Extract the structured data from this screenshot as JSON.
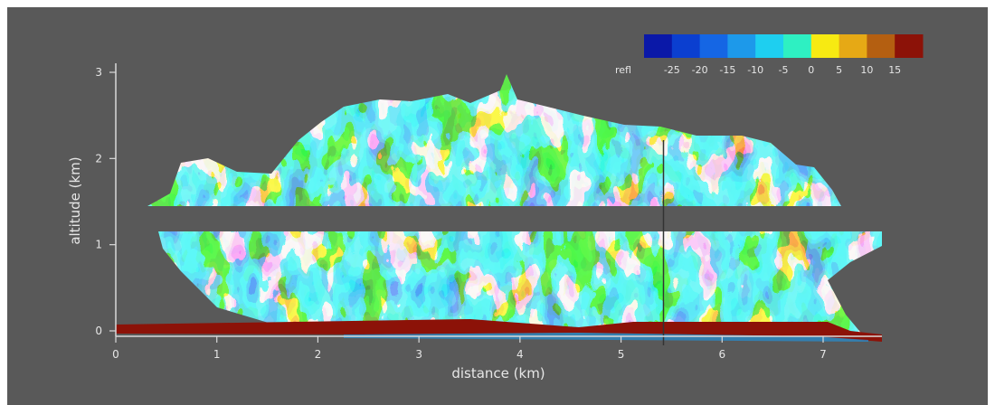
{
  "chart_data": {
    "type": "heatmap",
    "xlabel": "distance (km)",
    "ylabel": "altitude (km)",
    "xlim": [
      0,
      7.6
    ],
    "ylim": [
      -0.1,
      3.1
    ],
    "xticks": [
      "0",
      "1",
      "2",
      "3",
      "4",
      "5",
      "6",
      "7"
    ],
    "yticks": [
      "0",
      "1",
      "2",
      "3"
    ],
    "colorbar": {
      "label": "refl",
      "ticks": [
        "-25",
        "-20",
        "-15",
        "-10",
        "-5",
        "0",
        "5",
        "10",
        "15"
      ],
      "colors": [
        "#0a18a8",
        "#0b3fd0",
        "#1566e4",
        "#1d99ea",
        "#1ecff0",
        "#2ef0c2",
        "#f7ea12",
        "#e6a915",
        "#b45f11",
        "#8c1208"
      ]
    },
    "background_color": "#595959",
    "gap_band_km": [
      1.2,
      1.45
    ],
    "cursor_line_x_km": 5.42,
    "ground_layer_km": [
      0.0,
      7.3
    ]
  }
}
